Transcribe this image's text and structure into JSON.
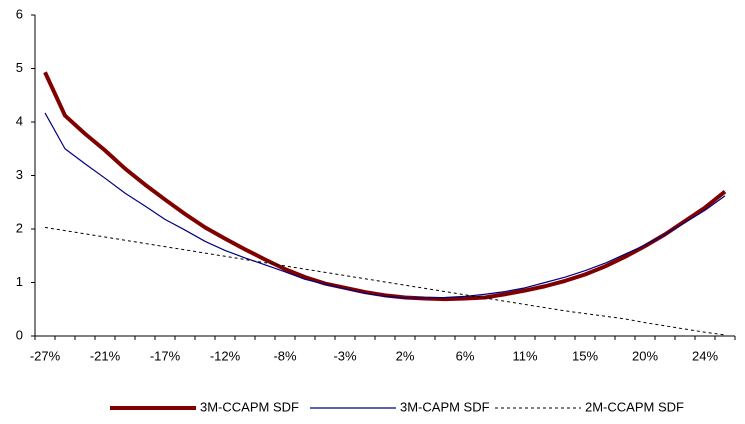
{
  "chart_data": {
    "type": "line",
    "categories": [
      "-27%",
      null,
      null,
      "-21%",
      null,
      null,
      "-17%",
      null,
      null,
      "-12%",
      null,
      null,
      "-8%",
      null,
      null,
      "-3%",
      null,
      null,
      "2%",
      null,
      null,
      "6%",
      null,
      null,
      "11%",
      null,
      null,
      "15%",
      null,
      null,
      "20%",
      null,
      null,
      "24%",
      null
    ],
    "series": [
      {
        "name": "3M-CCAPM SDF",
        "color": "#800000",
        "width": 4,
        "dash": "none",
        "values": [
          4.93,
          4.12,
          3.78,
          3.47,
          3.13,
          2.83,
          2.55,
          2.28,
          2.03,
          1.82,
          1.62,
          1.43,
          1.25,
          1.1,
          0.98,
          0.9,
          0.82,
          0.76,
          0.72,
          0.7,
          0.69,
          0.7,
          0.72,
          0.78,
          0.85,
          0.93,
          1.03,
          1.15,
          1.3,
          1.48,
          1.68,
          1.9,
          2.15,
          2.4,
          2.7
        ]
      },
      {
        "name": "3M-CAPM SDF",
        "color": "#000080",
        "width": 1.2,
        "dash": "none",
        "values": [
          4.17,
          3.5,
          3.22,
          2.95,
          2.67,
          2.43,
          2.18,
          1.98,
          1.77,
          1.6,
          1.46,
          1.33,
          1.2,
          1.06,
          0.97,
          0.88,
          0.8,
          0.74,
          0.71,
          0.71,
          0.72,
          0.74,
          0.78,
          0.83,
          0.9,
          1.0,
          1.1,
          1.22,
          1.36,
          1.53,
          1.7,
          1.9,
          2.12,
          2.35,
          2.62
        ]
      },
      {
        "name": "2M-CCAPM SDF",
        "color": "#000000",
        "width": 1,
        "dash": "3 3",
        "values": [
          2.03,
          1.97,
          1.91,
          1.85,
          1.79,
          1.73,
          1.67,
          1.61,
          1.55,
          1.49,
          1.43,
          1.37,
          1.31,
          1.25,
          1.19,
          1.13,
          1.07,
          1.01,
          0.95,
          0.89,
          0.83,
          0.77,
          0.71,
          0.65,
          0.59,
          0.53,
          0.47,
          0.42,
          0.37,
          0.32,
          0.25,
          0.19,
          0.13,
          0.07,
          0.02
        ]
      }
    ],
    "ylim": [
      0,
      6
    ],
    "yticks": [
      0,
      1,
      2,
      3,
      4,
      5,
      6
    ],
    "grid": false,
    "legend": "bottom"
  }
}
